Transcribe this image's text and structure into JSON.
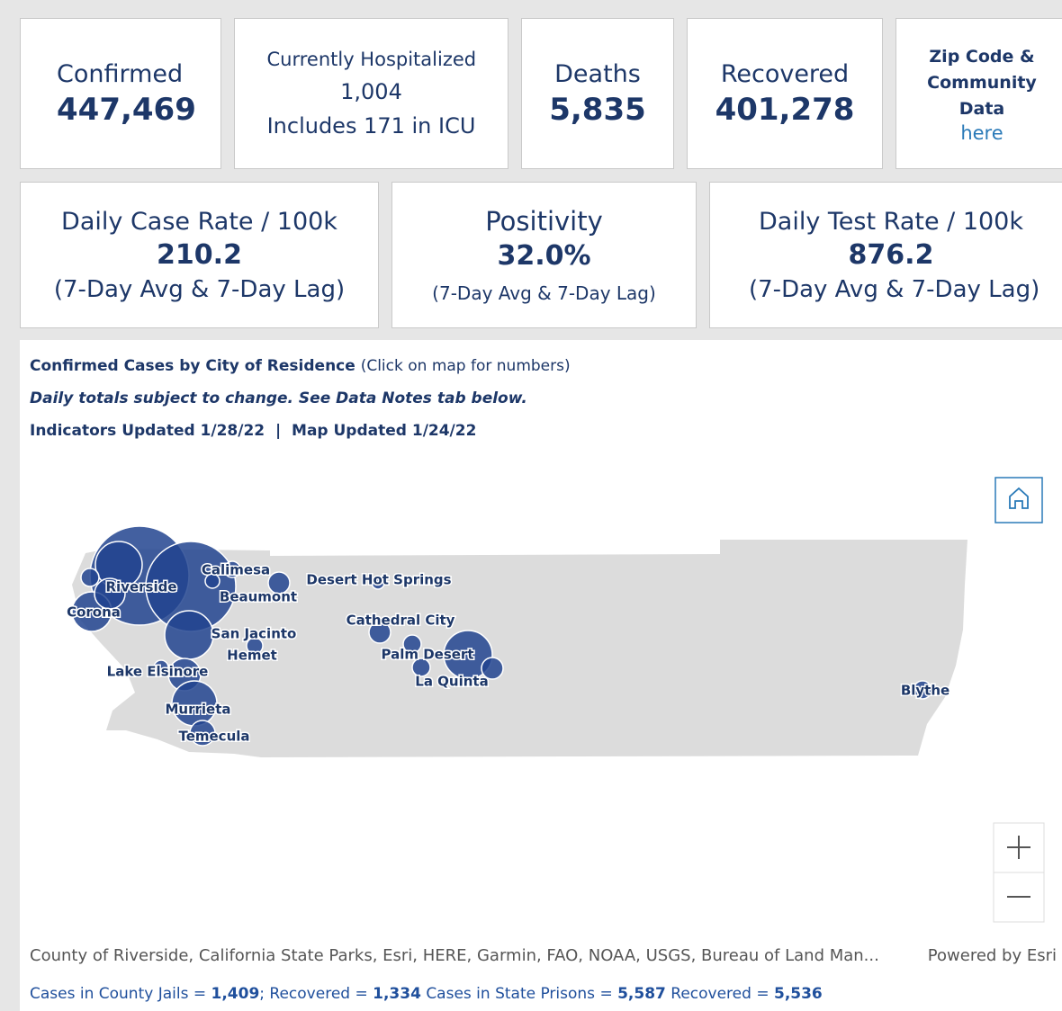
{
  "indicators_row1": [
    {
      "label": "Confirmed",
      "value": "447,469"
    },
    {
      "label": "Currently Hospitalized",
      "value": "1,004",
      "note": "Includes 171 in ICU"
    },
    {
      "label": "Deaths",
      "value": "5,835"
    },
    {
      "label": "Recovered",
      "value": "401,278"
    },
    {
      "label": "Zip Code & Community Data",
      "link": "here"
    }
  ],
  "indicators_row2": [
    {
      "label": "Daily Case Rate / 100k",
      "value": "210.2",
      "note": "(7-Day Avg & 7-Day Lag)"
    },
    {
      "label": "Positivity",
      "value": "32.0%",
      "note": "(7-Day Avg & 7-Day Lag)"
    },
    {
      "label": "Daily Test Rate / 100k",
      "value": "876.2",
      "note": "(7-Day Avg & 7-Day Lag)"
    }
  ],
  "map": {
    "title": "Confirmed Cases by City of Residence",
    "title_note": "(Click on map for numbers)",
    "subtitle": "Daily totals subject to change. See Data Notes tab below.",
    "indicators_updated": "Indicators Updated 1/28/22",
    "separator": "|",
    "map_updated": "Map Updated 1/24/22",
    "cities": [
      "Riverside",
      "Corona",
      "Calimesa",
      "Beaumont",
      "San Jacinto",
      "Hemet",
      "Lake Elsinore",
      "Murrieta",
      "Temecula",
      "Desert Hot Springs",
      "Cathedral City",
      "Palm Desert",
      "La Quinta",
      "Blythe"
    ],
    "attribution": "County of Riverside, California State Parks, Esri, HERE, Garmin, FAO, NOAA, USGS, Bureau of Land Man...",
    "powered_by": "Powered by Esri"
  },
  "footer": {
    "jails_label": "Cases in County Jails =",
    "jails_cases": "1,409",
    "jails_recovered_label": "; Recovered =",
    "jails_recovered": "1,334",
    "prisons_label": "Cases in State Prisons =",
    "prisons_cases": "5,587",
    "prisons_recovered_label": "Recovered =",
    "prisons_recovered": "5,536"
  }
}
